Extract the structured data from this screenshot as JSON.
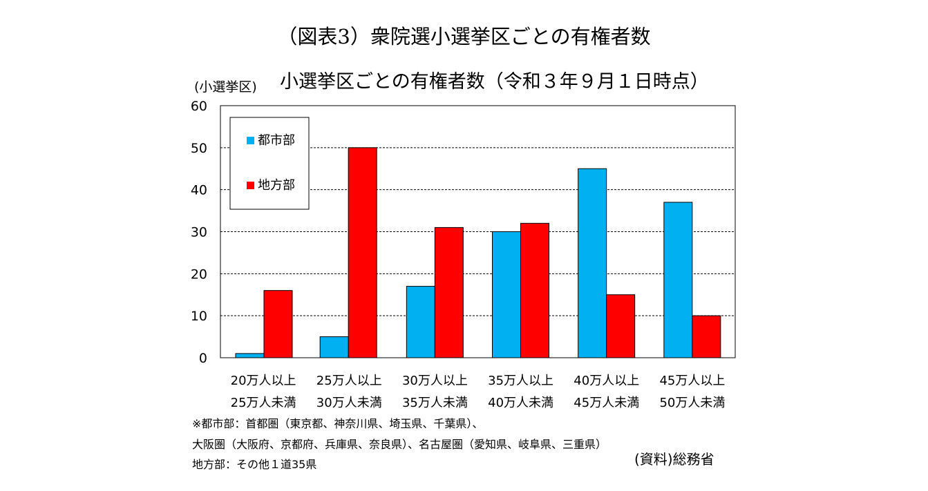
{
  "figure_title": "（図表3）衆院選小選挙区ごとの有権者数",
  "chart_data": {
    "type": "bar",
    "title": "小選挙区ごとの有権者数（令和３年９月１日時点）",
    "ylabel": "(小選挙区)",
    "xlabel": "",
    "ylim": [
      0,
      60
    ],
    "yticks": [
      0,
      10,
      20,
      30,
      40,
      50,
      60
    ],
    "grid": "dashed-horizontal",
    "legend_position": "top-left",
    "categories": [
      [
        "20万人以上",
        "25万人未満"
      ],
      [
        "25万人以上",
        "30万人未満"
      ],
      [
        "30万人以上",
        "35万人未満"
      ],
      [
        "35万人以上",
        "40万人未満"
      ],
      [
        "40万人以上",
        "45万人未満"
      ],
      [
        "45万人以上",
        "50万人未満"
      ]
    ],
    "series": [
      {
        "name": "都市部",
        "color": "#00b0f0",
        "values": [
          1,
          5,
          17,
          30,
          45,
          37
        ]
      },
      {
        "name": "地方部",
        "color": "#ff0000",
        "values": [
          16,
          50,
          31,
          32,
          15,
          10
        ]
      }
    ]
  },
  "notes": [
    "※都市部：首都圏（東京都、神奈川県、埼玉県、千葉県）、",
    "大阪圏（大阪府、京都府、兵庫県、奈良県）、名古屋圏（愛知県、岐阜県、三重県）",
    "地方部：その他１道35県"
  ],
  "source": "(資料)総務省"
}
